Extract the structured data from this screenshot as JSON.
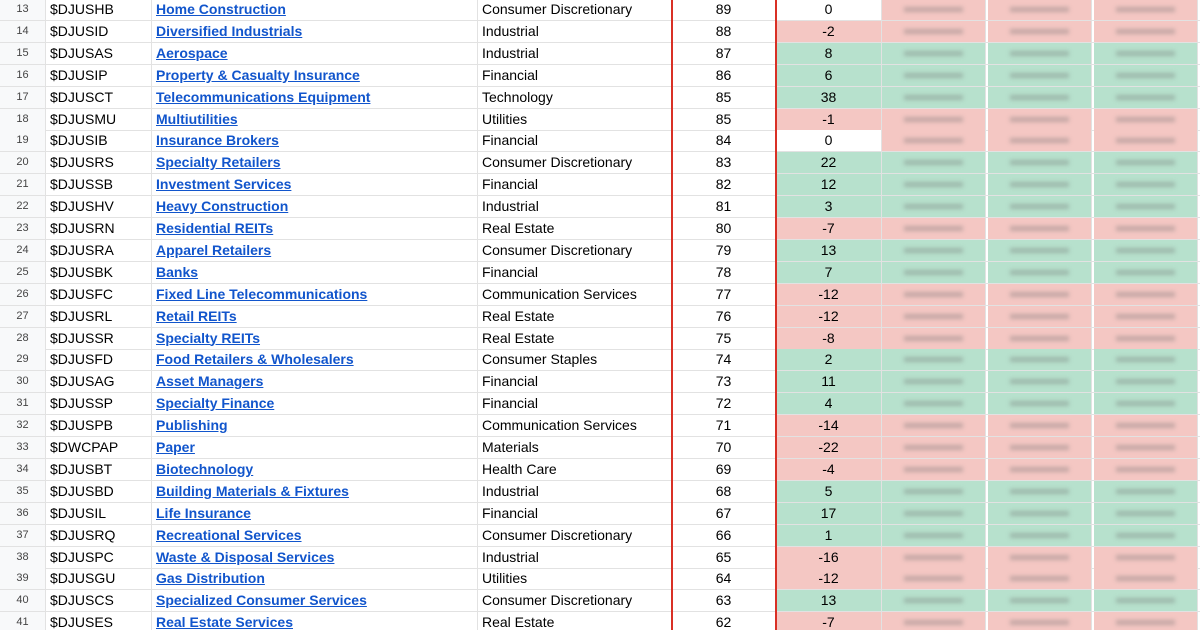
{
  "table": {
    "rows": [
      [
        13,
        "$DJUSHB",
        "Home Construction",
        "Consumer Discretionary",
        89,
        0
      ],
      [
        14,
        "$DJUSID",
        "Diversified Industrials",
        "Industrial",
        88,
        -2
      ],
      [
        15,
        "$DJUSAS",
        "Aerospace",
        "Industrial",
        87,
        8
      ],
      [
        16,
        "$DJUSIP",
        "Property & Casualty Insurance",
        "Financial",
        86,
        6
      ],
      [
        17,
        "$DJUSCT",
        "Telecommunications Equipment",
        "Technology",
        85,
        38
      ],
      [
        18,
        "$DJUSMU",
        "Multiutilities",
        "Utilities",
        85,
        -1
      ],
      [
        19,
        "$DJUSIB",
        "Insurance Brokers",
        "Financial",
        84,
        0
      ],
      [
        20,
        "$DJUSRS",
        "Specialty Retailers",
        "Consumer Discretionary",
        83,
        22
      ],
      [
        21,
        "$DJUSSB",
        "Investment Services",
        "Financial",
        82,
        12
      ],
      [
        22,
        "$DJUSHV",
        "Heavy Construction",
        "Industrial",
        81,
        3
      ],
      [
        23,
        "$DJUSRN",
        "Residential REITs",
        "Real Estate",
        80,
        -7
      ],
      [
        24,
        "$DJUSRA",
        "Apparel Retailers",
        "Consumer Discretionary",
        79,
        13
      ],
      [
        25,
        "$DJUSBK",
        "Banks",
        "Financial",
        78,
        7
      ],
      [
        26,
        "$DJUSFC",
        "Fixed Line Telecommunications",
        "Communication Services",
        77,
        -12
      ],
      [
        27,
        "$DJUSRL",
        "Retail REITs",
        "Real Estate",
        76,
        -12
      ],
      [
        28,
        "$DJUSSR",
        "Specialty REITs",
        "Real Estate",
        75,
        -8
      ],
      [
        29,
        "$DJUSFD",
        "Food Retailers & Wholesalers",
        "Consumer Staples",
        74,
        2
      ],
      [
        30,
        "$DJUSAG",
        "Asset Managers",
        "Financial",
        73,
        11
      ],
      [
        31,
        "$DJUSSP",
        "Specialty Finance",
        "Financial",
        72,
        4
      ],
      [
        32,
        "$DJUSPB",
        "Publishing",
        "Communication Services",
        71,
        -14
      ],
      [
        33,
        "$DWCPAP",
        "Paper",
        "Materials",
        70,
        -22
      ],
      [
        34,
        "$DJUSBT",
        "Biotechnology",
        "Health Care",
        69,
        -4
      ],
      [
        35,
        "$DJUSBD",
        "Building Materials & Fixtures",
        "Industrial",
        68,
        5
      ],
      [
        36,
        "$DJUSIL",
        "Life Insurance",
        "Financial",
        67,
        17
      ],
      [
        37,
        "$DJUSRQ",
        "Recreational Services",
        "Consumer Discretionary",
        66,
        1
      ],
      [
        38,
        "$DJUSPC",
        "Waste & Disposal Services",
        "Industrial",
        65,
        -16
      ],
      [
        39,
        "$DJUSGU",
        "Gas Distribution",
        "Utilities",
        64,
        -12
      ],
      [
        40,
        "$DJUSCS",
        "Specialized Consumer Services",
        "Consumer Discretionary",
        63,
        13
      ],
      [
        41,
        "$DJUSES",
        "Real Estate Services",
        "Real Estate",
        62,
        -7
      ]
    ]
  }
}
